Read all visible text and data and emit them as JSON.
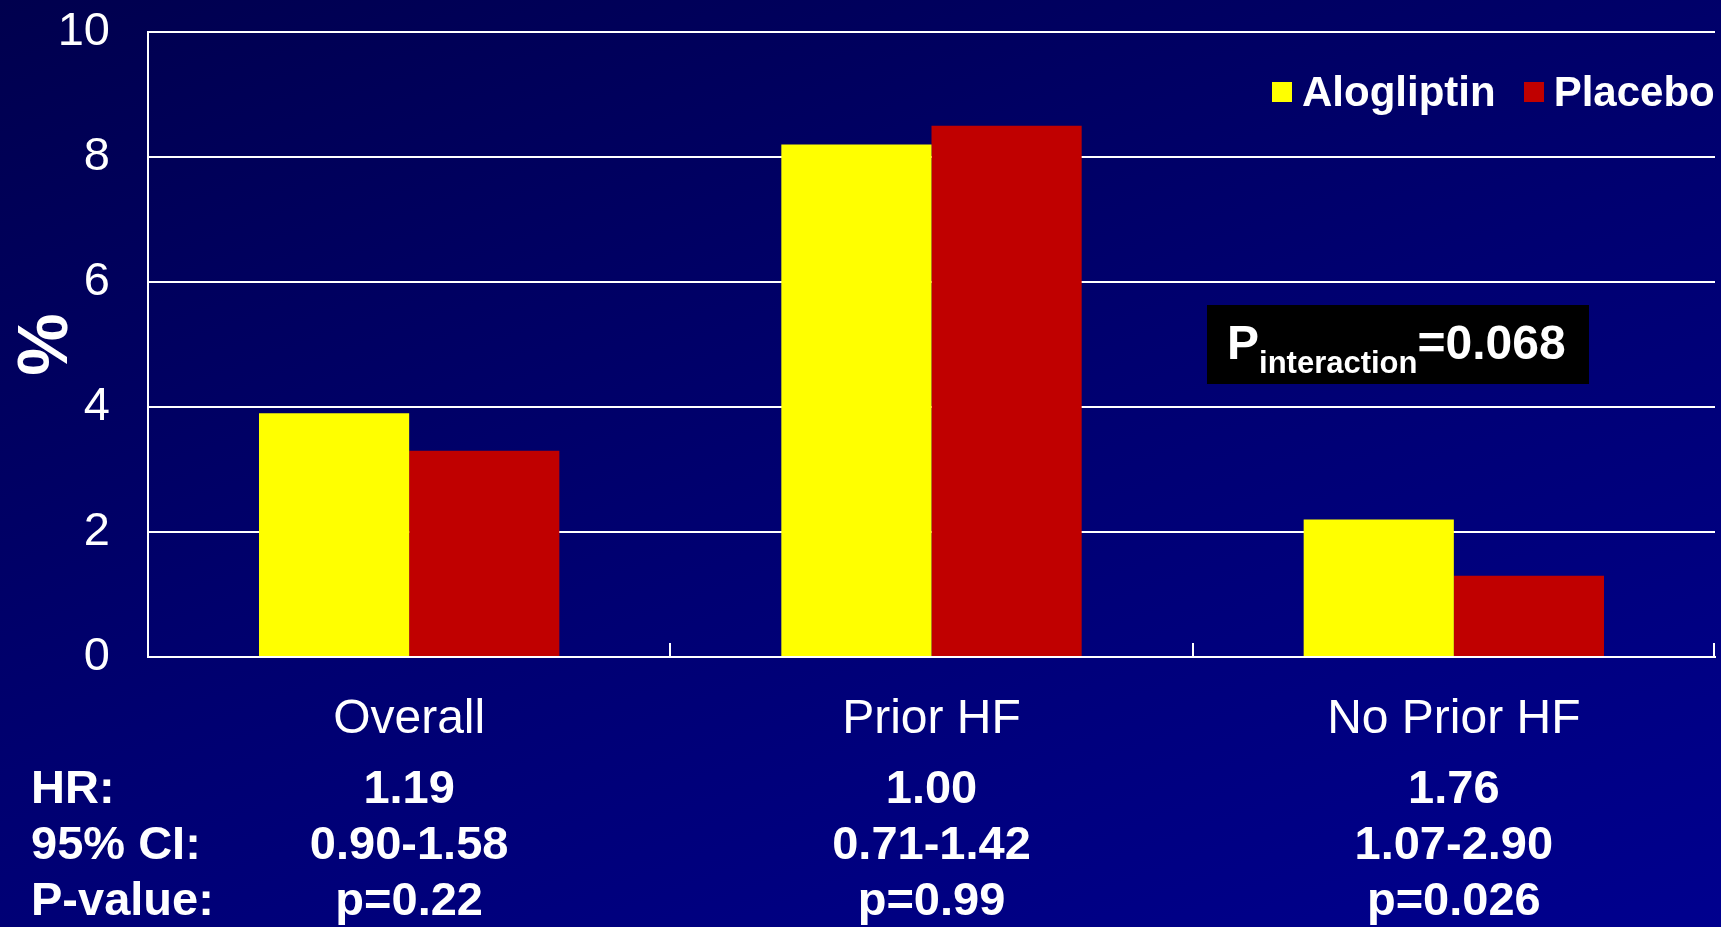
{
  "chart_data": {
    "type": "bar",
    "categories": [
      "Overall",
      "Prior HF",
      "No Prior HF"
    ],
    "series": [
      {
        "name": "Alogliptin",
        "color": "#ffff00",
        "values": [
          3.9,
          8.2,
          2.2
        ]
      },
      {
        "name": "Placebo",
        "color": "#c00000",
        "values": [
          3.3,
          8.5,
          1.3
        ]
      }
    ],
    "ylabel": "%",
    "ylim": [
      0,
      10
    ],
    "yticks": [
      0,
      2,
      4,
      6,
      8,
      10
    ],
    "grid": "y",
    "legend": "top right",
    "annotations": [
      "P$_{interaction}$=0.068",
      "HR:",
      "1.19",
      "1.00",
      "1.76",
      "95% CI:",
      "0.90-1.58",
      "0.71-1.42",
      "1.07-2.90",
      "P-value:",
      "p=0.22",
      "p=0.99",
      "p=0.026"
    ]
  }
}
